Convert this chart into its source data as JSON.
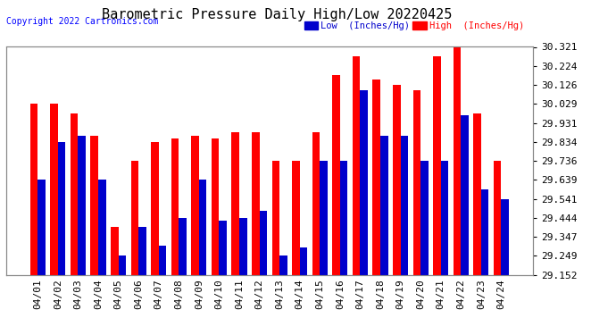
{
  "title": "Barometric Pressure Daily High/Low 20220425",
  "copyright": "Copyright 2022 Cartronics.com",
  "legend_low": "Low  (Inches/Hg)",
  "legend_high": "High  (Inches/Hg)",
  "dates": [
    "04/01",
    "04/02",
    "04/03",
    "04/04",
    "04/05",
    "04/06",
    "04/07",
    "04/08",
    "04/09",
    "04/10",
    "04/11",
    "04/12",
    "04/13",
    "04/14",
    "04/15",
    "04/16",
    "04/17",
    "04/18",
    "04/19",
    "04/20",
    "04/21",
    "04/22",
    "04/23",
    "04/24"
  ],
  "high": [
    30.029,
    30.029,
    29.98,
    29.863,
    29.395,
    29.736,
    29.834,
    29.85,
    29.863,
    29.85,
    29.883,
    29.883,
    29.736,
    29.736,
    29.883,
    30.175,
    30.272,
    30.155,
    30.126,
    30.1,
    30.272,
    30.35,
    29.98,
    29.736
  ],
  "low": [
    29.639,
    29.834,
    29.863,
    29.639,
    29.25,
    29.395,
    29.3,
    29.444,
    29.639,
    29.43,
    29.444,
    29.48,
    29.249,
    29.29,
    29.736,
    29.736,
    30.1,
    29.863,
    29.863,
    29.736,
    29.736,
    29.97,
    29.59,
    29.541
  ],
  "ymin": 29.152,
  "ymax": 30.321,
  "yticks": [
    29.152,
    29.249,
    29.347,
    29.444,
    29.541,
    29.639,
    29.736,
    29.834,
    29.931,
    30.029,
    30.126,
    30.224,
    30.321
  ],
  "bar_color_high": "#ff0000",
  "bar_color_low": "#0000cc",
  "background_color": "#ffffff",
  "grid_color": "#b0b0b0",
  "title_fontsize": 11,
  "tick_fontsize": 8,
  "bar_width": 0.38
}
